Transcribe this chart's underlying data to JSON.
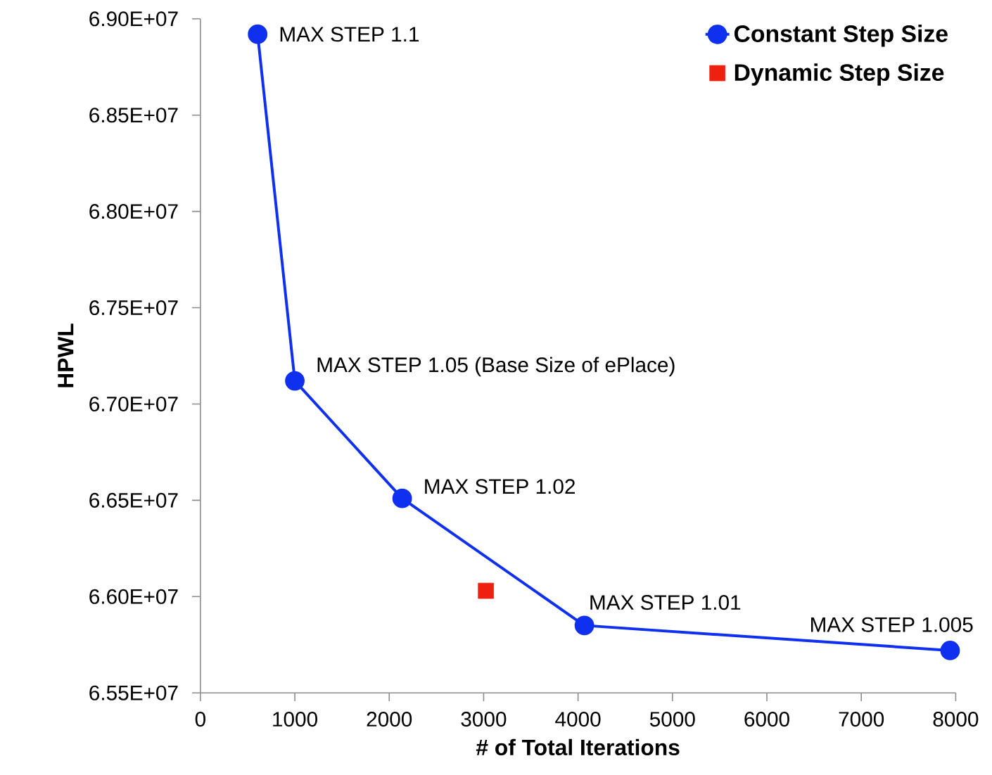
{
  "chart_data": {
    "type": "line",
    "xlabel": "# of Total Iterations",
    "ylabel": "HPWL",
    "xlim": [
      0,
      8000
    ],
    "ylim": [
      65500000,
      69000000
    ],
    "xticks": [
      0,
      1000,
      2000,
      3000,
      4000,
      5000,
      6000,
      7000,
      8000
    ],
    "yticks": [
      {
        "value": 65500000,
        "label": "6.55E+07"
      },
      {
        "value": 66000000,
        "label": "6.60E+07"
      },
      {
        "value": 66500000,
        "label": "6.65E+07"
      },
      {
        "value": 67000000,
        "label": "6.70E+07"
      },
      {
        "value": 67500000,
        "label": "6.75E+07"
      },
      {
        "value": 68000000,
        "label": "6.80E+07"
      },
      {
        "value": 68500000,
        "label": "6.85E+07"
      },
      {
        "value": 69000000,
        "label": "6.90E+07"
      }
    ],
    "series": [
      {
        "name": "Constant Step Size",
        "color": "#1030f0",
        "marker": "circle",
        "x": [
          606,
          1000,
          2137,
          4067,
          7941
        ],
        "values": [
          68920000,
          67120000,
          66510000,
          65850000,
          65720000
        ]
      },
      {
        "name": "Dynamic Step Size",
        "type": "scatter",
        "color": "#f02010",
        "marker": "square",
        "x": [
          3024
        ],
        "values": [
          66030000
        ]
      }
    ],
    "annotations": [
      {
        "text": "MAX STEP 1.1",
        "x": 606,
        "y": 68920000
      },
      {
        "text": "MAX STEP 1.05 (Base Size of ePlace)",
        "x": 1000,
        "y": 67120000
      },
      {
        "text": "MAX STEP 1.02",
        "x": 2137,
        "y": 66510000
      },
      {
        "text": "MAX STEP 1.01",
        "x": 4067,
        "y": 65850000
      },
      {
        "text": "MAX STEP 1.005",
        "x": 7941,
        "y": 65720000
      }
    ],
    "grid": false,
    "legend": "top right"
  }
}
